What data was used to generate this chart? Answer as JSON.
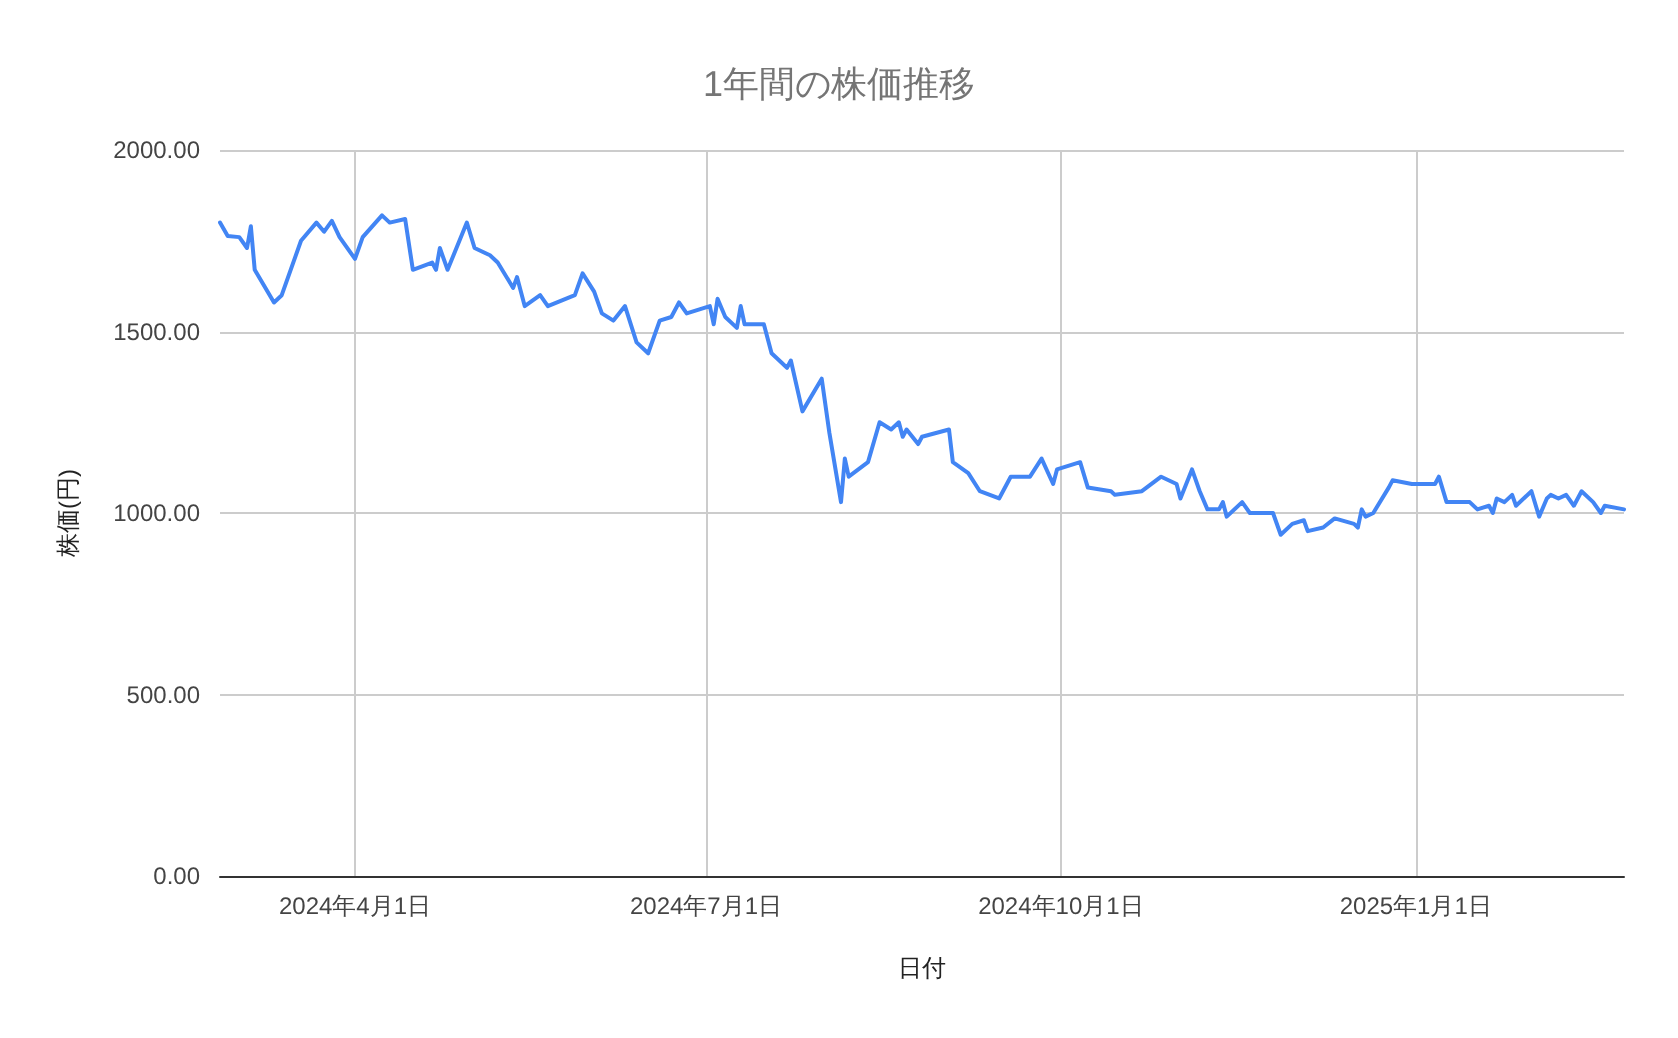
{
  "chart_data": {
    "type": "line",
    "title": "1年間の株価推移",
    "xlabel": "日付",
    "ylabel": "株価(円)",
    "xlim": [
      "2024-02-26",
      "2025-02-24"
    ],
    "xticks": [
      {
        "value": "2024-04-01",
        "label": "2024年4月1日"
      },
      {
        "value": "2024-07-01",
        "label": "2024年7月1日"
      },
      {
        "value": "2024-10-01",
        "label": "2024年10月1日"
      },
      {
        "value": "2025-01-01",
        "label": "2025年1月1日"
      }
    ],
    "ylim": [
      0,
      2000
    ],
    "yticks": [
      {
        "value": 0,
        "label": "0.00"
      },
      {
        "value": 500,
        "label": "500.00"
      },
      {
        "value": 1000,
        "label": "1000.00"
      },
      {
        "value": 1500,
        "label": "1500.00"
      },
      {
        "value": 2000,
        "label": "2000.00"
      }
    ],
    "grid": true,
    "marker": "none",
    "line_style": "solid",
    "series": [
      {
        "color": "#4285f4",
        "x": [
          "2024-02-26",
          "2024-02-28",
          "2024-03-02",
          "2024-03-04",
          "2024-03-05",
          "2024-03-06",
          "2024-03-11",
          "2024-03-13",
          "2024-03-18",
          "2024-03-22",
          "2024-03-24",
          "2024-03-26",
          "2024-03-28",
          "2024-04-01",
          "2024-04-03",
          "2024-04-08",
          "2024-04-10",
          "2024-04-14",
          "2024-04-16",
          "2024-04-21",
          "2024-04-22",
          "2024-04-23",
          "2024-04-25",
          "2024-04-30",
          "2024-05-02",
          "2024-05-06",
          "2024-05-08",
          "2024-05-12",
          "2024-05-13",
          "2024-05-15",
          "2024-05-19",
          "2024-05-21",
          "2024-05-28",
          "2024-05-30",
          "2024-06-02",
          "2024-06-04",
          "2024-06-07",
          "2024-06-10",
          "2024-06-13",
          "2024-06-16",
          "2024-06-19",
          "2024-06-22",
          "2024-06-24",
          "2024-06-26",
          "2024-07-02",
          "2024-07-03",
          "2024-07-04",
          "2024-07-06",
          "2024-07-09",
          "2024-07-10",
          "2024-07-11",
          "2024-07-16",
          "2024-07-18",
          "2024-07-22",
          "2024-07-23",
          "2024-07-26",
          "2024-07-31",
          "2024-08-02",
          "2024-08-05",
          "2024-08-06",
          "2024-08-07",
          "2024-08-12",
          "2024-08-15",
          "2024-08-18",
          "2024-08-20",
          "2024-08-21",
          "2024-08-22",
          "2024-08-25",
          "2024-08-26",
          "2024-09-02",
          "2024-09-03",
          "2024-09-07",
          "2024-09-10",
          "2024-09-15",
          "2024-09-18",
          "2024-09-23",
          "2024-09-26",
          "2024-09-29",
          "2024-09-30",
          "2024-10-06",
          "2024-10-08",
          "2024-10-14",
          "2024-10-15",
          "2024-10-22",
          "2024-10-27",
          "2024-10-31",
          "2024-11-01",
          "2024-11-04",
          "2024-11-06",
          "2024-11-08",
          "2024-11-11",
          "2024-11-12",
          "2024-11-13",
          "2024-11-17",
          "2024-11-19",
          "2024-11-25",
          "2024-11-27",
          "2024-11-30",
          "2024-12-03",
          "2024-12-04",
          "2024-12-08",
          "2024-12-11",
          "2024-12-16",
          "2024-12-17",
          "2024-12-18",
          "2024-12-19",
          "2024-12-21",
          "2024-12-25",
          "2024-12-26",
          "2024-12-31",
          "2025-01-06",
          "2025-01-07",
          "2025-01-09",
          "2025-01-15",
          "2025-01-17",
          "2025-01-20",
          "2025-01-21",
          "2025-01-22",
          "2025-01-24",
          "2025-01-26",
          "2025-01-27",
          "2025-01-31",
          "2025-02-02",
          "2025-02-04",
          "2025-02-05",
          "2025-02-07",
          "2025-02-09",
          "2025-02-11",
          "2025-02-13",
          "2025-02-16",
          "2025-02-18",
          "2025-02-19",
          "2025-02-24"
        ],
        "values": [
          1800,
          1763,
          1760,
          1730,
          1790,
          1670,
          1580,
          1600,
          1750,
          1800,
          1775,
          1805,
          1760,
          1700,
          1760,
          1820,
          1800,
          1810,
          1670,
          1690,
          1670,
          1730,
          1670,
          1800,
          1730,
          1710,
          1690,
          1620,
          1650,
          1570,
          1600,
          1570,
          1600,
          1660,
          1610,
          1550,
          1530,
          1570,
          1470,
          1440,
          1530,
          1540,
          1580,
          1550,
          1570,
          1520,
          1590,
          1540,
          1510,
          1570,
          1520,
          1520,
          1440,
          1400,
          1420,
          1280,
          1370,
          1220,
          1030,
          1150,
          1100,
          1140,
          1250,
          1230,
          1250,
          1210,
          1230,
          1190,
          1210,
          1230,
          1140,
          1110,
          1060,
          1040,
          1100,
          1100,
          1150,
          1080,
          1120,
          1140,
          1070,
          1060,
          1050,
          1060,
          1100,
          1080,
          1040,
          1120,
          1060,
          1010,
          1010,
          1030,
          990,
          1030,
          1000,
          1000,
          940,
          970,
          980,
          950,
          960,
          985,
          970,
          960,
          1010,
          990,
          1000,
          1070,
          1090,
          1080,
          1080,
          1100,
          1030,
          1030,
          1010,
          1020,
          1000,
          1040,
          1030,
          1050,
          1020,
          1060,
          990,
          1040,
          1050,
          1040,
          1050,
          1020,
          1060,
          1030,
          1000,
          1020,
          1010
        ]
      }
    ]
  }
}
